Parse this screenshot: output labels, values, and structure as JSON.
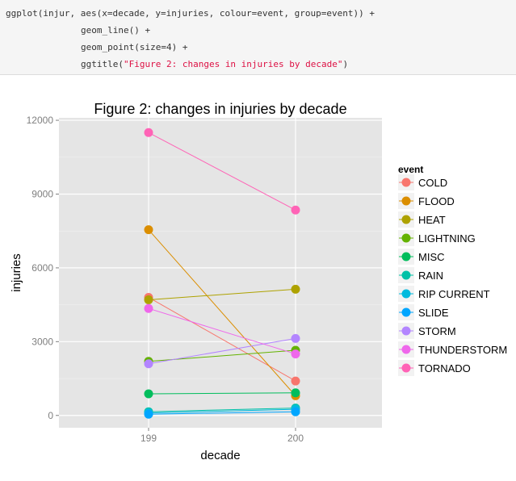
{
  "code": {
    "line1": "ggplot(injur, aes(x=decade, y=injuries, colour=event, group=event)) +",
    "line2": "geom_line() +",
    "line3": "geom_point(size=4) +",
    "line4_prefix": "ggtitle(",
    "line4_string": "\"Figure 2: changes in injuries by decade\"",
    "line4_suffix": ")"
  },
  "chart_data": {
    "type": "line",
    "title": "Figure 2: changes in injuries by decade",
    "xlabel": "decade",
    "ylabel": "injuries",
    "categories": [
      "199",
      "200"
    ],
    "ylim": [
      -500,
      12100
    ],
    "yticks": [
      0,
      3000,
      6000,
      9000,
      12000
    ],
    "grid": true,
    "legend_title": "event",
    "legend_position": "right",
    "series": [
      {
        "name": "COLD",
        "color": "#F8766D",
        "values": [
          4800,
          1400
        ]
      },
      {
        "name": "FLOOD",
        "color": "#DB8E00",
        "values": [
          7550,
          800
        ]
      },
      {
        "name": "HEAT",
        "color": "#AEA200",
        "values": [
          4700,
          5130
        ]
      },
      {
        "name": "LIGHTNING",
        "color": "#64B200",
        "values": [
          2200,
          2650
        ]
      },
      {
        "name": "MISC",
        "color": "#00BD5C",
        "values": [
          880,
          920
        ]
      },
      {
        "name": "RAIN",
        "color": "#00C1A7",
        "values": [
          150,
          300
        ]
      },
      {
        "name": "RIP CURRENT",
        "color": "#00BADE",
        "values": [
          100,
          250
        ]
      },
      {
        "name": "SLIDE",
        "color": "#00A6FF",
        "values": [
          50,
          150
        ]
      },
      {
        "name": "STORM",
        "color": "#B385FF",
        "values": [
          2100,
          3130
        ]
      },
      {
        "name": "THUNDERSTORM",
        "color": "#EF67EB",
        "values": [
          4350,
          2500
        ]
      },
      {
        "name": "TORNADO",
        "color": "#FF63B6",
        "values": [
          11500,
          8350
        ]
      }
    ]
  }
}
